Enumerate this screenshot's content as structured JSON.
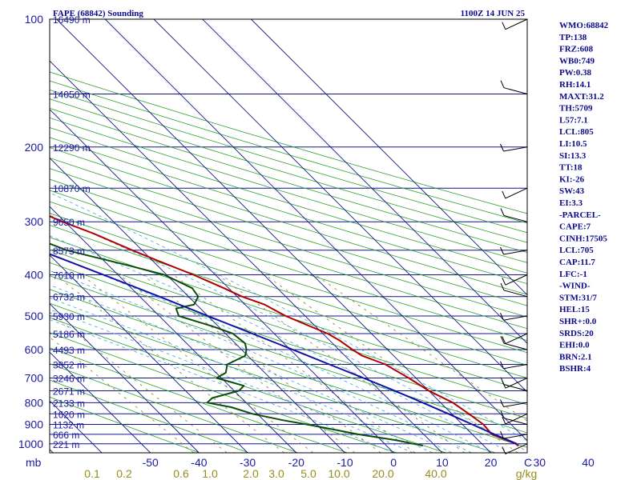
{
  "header": {
    "station_title": "FAPE (68842) Sounding",
    "valid_time": "1100Z 14 JUN 25"
  },
  "indices": [
    "WMO:68842",
    "TP:138",
    "FRZ:608",
    "WB0:749",
    "PW:0.38",
    "RH:14.1",
    "MAXT:31.2",
    "TH:5709",
    "L57:7.1",
    "LCL:805",
    "LI:10.5",
    "SI:13.3",
    "TT:18",
    "KI:-26",
    "SW:43",
    "EI:3.3",
    "-PARCEL-",
    "CAPE:7",
    "CINH:17505",
    "LCL:705",
    "CAP:11.7",
    "LFC:-1",
    "-WIND-",
    "STM:31/7",
    "HEL:15",
    "SHR+:0.0",
    "SRDS:20",
    "EHI:0.0",
    "BRN:2.1",
    "BSHR:4"
  ],
  "chart_data": {
    "type": "line",
    "title": "FAPE (68842) Sounding",
    "xlabel": "",
    "ylabel": "mb",
    "x_unit_mixing_ratio": "g/kg",
    "pressure_levels": [
      100,
      200,
      300,
      400,
      500,
      600,
      700,
      800,
      900,
      1000
    ],
    "pressure_labels": [
      "100",
      "200",
      "300",
      "400",
      "500",
      "600",
      "700",
      "800",
      "900",
      "1000"
    ],
    "temperature_ticks": [
      -50,
      -40,
      -30,
      -20,
      -10,
      0,
      10,
      20,
      30,
      40
    ],
    "temperature_labels": [
      "-50",
      "-40",
      "-30",
      "-20",
      "-10",
      "0",
      "10",
      "20",
      "30",
      "40"
    ],
    "mixing_ratio_labels": [
      "0.1",
      "0.2",
      "0.6",
      "1.0",
      "2.0",
      "3.0",
      "5.0",
      "10.0",
      "20.0",
      "40.0",
      "g/kg"
    ],
    "right_edge_tick_label": "C",
    "axis_unit_label": "mb",
    "height_labels": [
      {
        "p": 100,
        "text": "16490 m"
      },
      {
        "p": 150,
        "text": "14050 m"
      },
      {
        "p": 200,
        "text": "12290 m"
      },
      {
        "p": 250,
        "text": "10870 m"
      },
      {
        "p": 300,
        "text": "9650 m"
      },
      {
        "p": 350,
        "text": "8573 m"
      },
      {
        "p": 400,
        "text": "7610 m"
      },
      {
        "p": 450,
        "text": "6732 m"
      },
      {
        "p": 500,
        "text": "5930 m"
      },
      {
        "p": 550,
        "text": "5186 m"
      },
      {
        "p": 600,
        "text": "4493 m"
      },
      {
        "p": 650,
        "text": "3852 m"
      },
      {
        "p": 700,
        "text": "3246 m"
      },
      {
        "p": 750,
        "text": "2671 m"
      },
      {
        "p": 800,
        "text": "2133 m"
      },
      {
        "p": 850,
        "text": "1620 m"
      },
      {
        "p": 900,
        "text": "1132 m"
      },
      {
        "p": 950,
        "text": "666 m"
      },
      {
        "p": 1000,
        "text": "221 m"
      }
    ],
    "series": [
      {
        "color": "#b00000",
        "points": [
          [
            1010,
            27.2
          ],
          [
            1000,
            27.0
          ],
          [
            950,
            24.0
          ],
          [
            900,
            24.3
          ],
          [
            850,
            23.5
          ],
          [
            800,
            22.5
          ],
          [
            750,
            20.0
          ],
          [
            700,
            18.5
          ],
          [
            650,
            16.5
          ],
          [
            620,
            13.5
          ],
          [
            600,
            12.8
          ],
          [
            570,
            12.0
          ],
          [
            550,
            11.0
          ],
          [
            520,
            8.0
          ],
          [
            500,
            6.0
          ],
          [
            470,
            4.0
          ],
          [
            450,
            1.0
          ],
          [
            430,
            -1.0
          ],
          [
            400,
            -4.5
          ],
          [
            370,
            -9.0
          ],
          [
            350,
            -12.0
          ],
          [
            320,
            -16.5
          ],
          [
            300,
            -20.5
          ],
          [
            280,
            -24.0
          ],
          [
            250,
            -29.5
          ],
          [
            230,
            -33.0
          ],
          [
            200,
            -39.0
          ],
          [
            185,
            -42.0
          ],
          [
            170,
            -45.5
          ],
          [
            160,
            -49.0
          ],
          [
            150,
            -52.0
          ],
          [
            140,
            -54.5
          ],
          [
            130,
            -57.0
          ],
          [
            125,
            -59.0
          ],
          [
            120,
            -60.0
          ],
          [
            115,
            -62.0
          ],
          [
            108,
            -65.0
          ],
          [
            103,
            -66.0
          ],
          [
            100,
            -66.5
          ]
        ]
      },
      {
        "color": "#0a4d0a",
        "points": [
          [
            1010,
            7.5
          ],
          [
            1000,
            6.0
          ],
          [
            980,
            3.0
          ],
          [
            950,
            -3.5
          ],
          [
            920,
            -8.5
          ],
          [
            900,
            -12.0
          ],
          [
            880,
            -16.0
          ],
          [
            850,
            -21.0
          ],
          [
            820,
            -24.0
          ],
          [
            800,
            -28.0
          ],
          [
            780,
            -26.0
          ],
          [
            750,
            -19.0
          ],
          [
            730,
            -17.0
          ],
          [
            700,
            -21.0
          ],
          [
            680,
            -18.0
          ],
          [
            650,
            -16.0
          ],
          [
            620,
            -10.5
          ],
          [
            600,
            -9.0
          ],
          [
            580,
            -8.0
          ],
          [
            550,
            -8.5
          ],
          [
            530,
            -11.0
          ],
          [
            500,
            -16.0
          ],
          [
            480,
            -15.0
          ],
          [
            470,
            -10.5
          ],
          [
            450,
            -8.0
          ],
          [
            430,
            -7.5
          ],
          [
            400,
            -10.5
          ],
          [
            380,
            -16.0
          ],
          [
            350,
            -25.5
          ],
          [
            330,
            -29.0
          ],
          [
            310,
            -29.0
          ],
          [
            300,
            -32.5
          ],
          [
            280,
            -36.0
          ],
          [
            270,
            -37.5
          ],
          [
            250,
            -42.0
          ],
          [
            230,
            -45.0
          ],
          [
            200,
            -51.0
          ],
          [
            180,
            -57.0
          ],
          [
            170,
            -60.0
          ],
          [
            160,
            -63.0
          ],
          [
            150,
            -66.0
          ],
          [
            140,
            -68.0
          ],
          [
            130,
            -69.5
          ],
          [
            120,
            -72.0
          ],
          [
            110,
            -75.0
          ],
          [
            105,
            -77.0
          ],
          [
            100,
            -79.0
          ]
        ]
      },
      {
        "color": "#1010a8",
        "points": [
          [
            1000,
            27.2
          ],
          [
            950,
            24.5
          ],
          [
            900,
            22.0
          ],
          [
            850,
            19.3
          ],
          [
            800,
            16.3
          ],
          [
            750,
            13.0
          ],
          [
            700,
            9.2
          ],
          [
            650,
            5.0
          ],
          [
            600,
            0.5
          ],
          [
            550,
            -4.5
          ],
          [
            500,
            -10.0
          ],
          [
            450,
            -16.0
          ],
          [
            400,
            -23.0
          ],
          [
            350,
            -31.0
          ],
          [
            300,
            -40.0
          ],
          [
            250,
            -50.0
          ],
          [
            200,
            -61.0
          ],
          [
            150,
            -73.0
          ],
          [
            120,
            -81.0
          ]
        ]
      }
    ]
  }
}
